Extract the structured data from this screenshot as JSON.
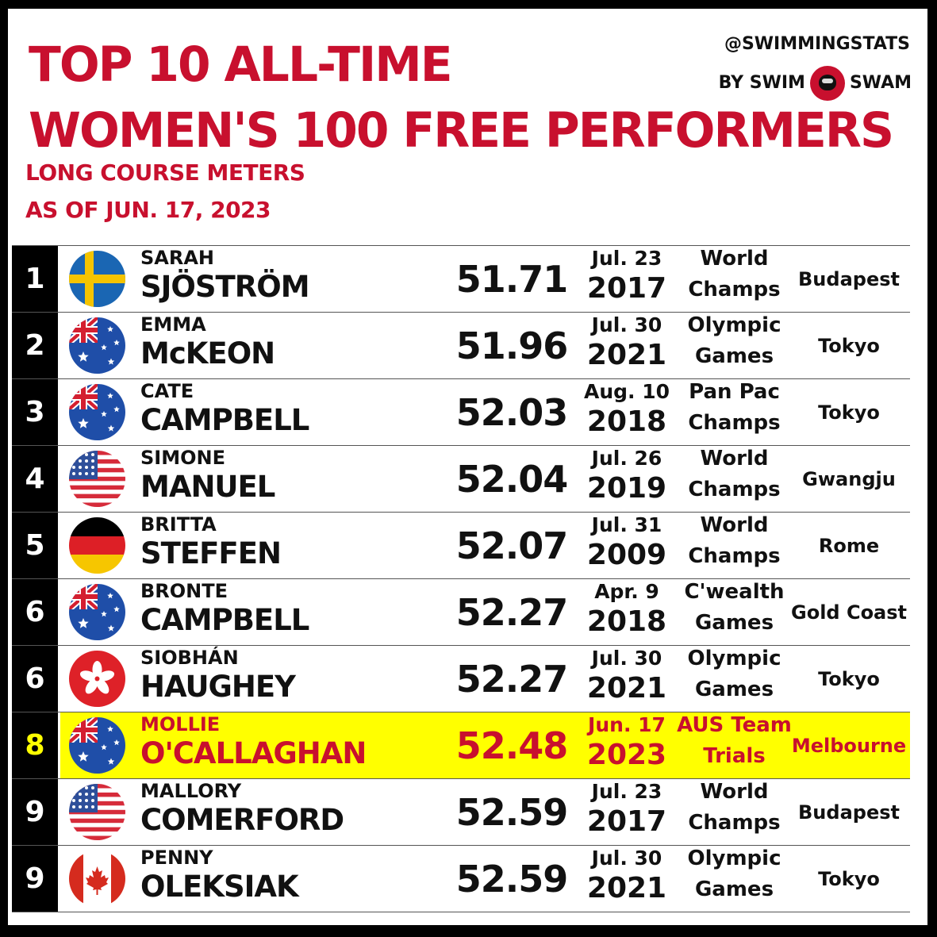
{
  "title_line1": "TOP 10 ALL-TIME",
  "title_line2": "WOMEN'S 100 FREE PERFORMERS",
  "subtitle_line1": "LONG COURSE METERS",
  "subtitle_line2": "AS OF JUN. 17, 2023",
  "brand_line1": "@SWIMMINGSTATS",
  "brand_by": "BY SWIM",
  "brand_swam": "SWAM",
  "colors": {
    "accent": "#c8102e",
    "highlight": "#ffff00"
  },
  "rows": [
    {
      "rank": "1",
      "first": "SARAH",
      "last": "SJÖSTRÖM",
      "time": "51.71",
      "date_md": "Jul. 23",
      "date_year": "2017",
      "meet_line1": "World",
      "meet_line2": "Champs",
      "city": "Budapest",
      "flag": "sweden-flag-icon"
    },
    {
      "rank": "2",
      "first": "EMMA",
      "last": "McKEON",
      "time": "51.96",
      "date_md": "Jul. 30",
      "date_year": "2021",
      "meet_line1": "Olympic",
      "meet_line2": "Games",
      "city": "Tokyo",
      "flag": "australia-flag-icon"
    },
    {
      "rank": "3",
      "first": "CATE",
      "last": "CAMPBELL",
      "time": "52.03",
      "date_md": "Aug. 10",
      "date_year": "2018",
      "meet_line1": "Pan Pac",
      "meet_line2": "Champs",
      "city": "Tokyo",
      "flag": "australia-flag-icon"
    },
    {
      "rank": "4",
      "first": "SIMONE",
      "last": "MANUEL",
      "time": "52.04",
      "date_md": "Jul. 26",
      "date_year": "2019",
      "meet_line1": "World",
      "meet_line2": "Champs",
      "city": "Gwangju",
      "flag": "usa-flag-icon"
    },
    {
      "rank": "5",
      "first": "BRITTA",
      "last": "STEFFEN",
      "time": "52.07",
      "date_md": "Jul. 31",
      "date_year": "2009",
      "meet_line1": "World",
      "meet_line2": "Champs",
      "city": "Rome",
      "flag": "germany-flag-icon"
    },
    {
      "rank": "6",
      "first": "BRONTE",
      "last": "CAMPBELL",
      "time": "52.27",
      "date_md": "Apr. 9",
      "date_year": "2018",
      "meet_line1": "C'wealth",
      "meet_line2": "Games",
      "city": "Gold Coast",
      "flag": "australia-flag-icon"
    },
    {
      "rank": "6",
      "first": "SIOBHÁN",
      "last": "HAUGHEY",
      "time": "52.27",
      "date_md": "Jul. 30",
      "date_year": "2021",
      "meet_line1": "Olympic",
      "meet_line2": "Games",
      "city": "Tokyo",
      "flag": "hong-kong-flag-icon"
    },
    {
      "rank": "8",
      "first": "MOLLIE",
      "last": "O'CALLAGHAN",
      "time": "52.48",
      "date_md": "Jun. 17",
      "date_year": "2023",
      "meet_line1": "AUS Team",
      "meet_line2": "Trials",
      "city": "Melbourne",
      "flag": "australia-flag-icon",
      "highlight": true
    },
    {
      "rank": "9",
      "first": "MALLORY",
      "last": "COMERFORD",
      "time": "52.59",
      "date_md": "Jul. 23",
      "date_year": "2017",
      "meet_line1": "World",
      "meet_line2": "Champs",
      "city": "Budapest",
      "flag": "usa-flag-icon"
    },
    {
      "rank": "9",
      "first": "PENNY",
      "last": "OLEKSIAK",
      "time": "52.59",
      "date_md": "Jul. 30",
      "date_year": "2021",
      "meet_line1": "Olympic",
      "meet_line2": "Games",
      "city": "Tokyo",
      "flag": "canada-flag-icon"
    }
  ]
}
